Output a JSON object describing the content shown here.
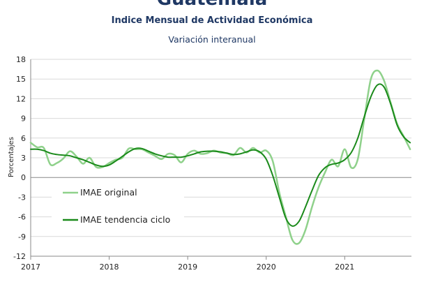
{
  "header": {
    "title": "Guatemala",
    "subtitle": "Indice Mensual de  Actividad Económica",
    "subsubtitle": "Variación interanual"
  },
  "chart_data": {
    "type": "line",
    "title": "Guatemala",
    "ylabel": "Porcentajes",
    "ylim": [
      -12,
      18
    ],
    "yticks": [
      18,
      15,
      12,
      9,
      6,
      3,
      0,
      -3,
      -6,
      -9,
      -12
    ],
    "xlim": [
      2017.0,
      2021.85
    ],
    "xticks": [
      "2017",
      "2018",
      "2019",
      "2020",
      "2021"
    ],
    "grid": "horizontal",
    "legend_position": "lower-left",
    "series": [
      {
        "name": "IMAE original",
        "color": "#8fd18b",
        "x": [
          2017.0,
          2017.083,
          2017.167,
          2017.25,
          2017.333,
          2017.417,
          2017.5,
          2017.583,
          2017.667,
          2017.75,
          2017.833,
          2017.917,
          2018.0,
          2018.083,
          2018.167,
          2018.25,
          2018.333,
          2018.417,
          2018.5,
          2018.583,
          2018.667,
          2018.75,
          2018.833,
          2018.917,
          2019.0,
          2019.083,
          2019.167,
          2019.25,
          2019.333,
          2019.417,
          2019.5,
          2019.583,
          2019.667,
          2019.75,
          2019.833,
          2019.917,
          2020.0,
          2020.083,
          2020.167,
          2020.25,
          2020.333,
          2020.417,
          2020.5,
          2020.583,
          2020.667,
          2020.75,
          2020.833,
          2020.917,
          2021.0,
          2021.083,
          2021.167,
          2021.25,
          2021.333,
          2021.417,
          2021.5,
          2021.583,
          2021.667,
          2021.75,
          2021.833
        ],
        "values": [
          5.3,
          4.6,
          4.5,
          2.0,
          2.2,
          2.9,
          4.0,
          3.2,
          2.1,
          3.0,
          1.6,
          1.6,
          2.2,
          2.7,
          3.0,
          4.4,
          4.3,
          4.3,
          3.8,
          3.3,
          2.8,
          3.6,
          3.4,
          2.3,
          3.6,
          4.1,
          3.6,
          3.7,
          4.1,
          3.8,
          3.7,
          3.4,
          4.5,
          3.8,
          4.5,
          3.8,
          4.1,
          2.5,
          -2.3,
          -6.0,
          -9.5,
          -10.0,
          -8.0,
          -4.5,
          -1.5,
          0.8,
          2.7,
          1.7,
          4.3,
          1.5,
          2.8,
          9.0,
          15.0,
          16.3,
          14.8,
          11.5,
          8.2,
          6.3,
          4.3
        ]
      },
      {
        "name": "IMAE tendencia ciclo",
        "color": "#1a8a1a",
        "x": [
          2017.0,
          2017.083,
          2017.167,
          2017.25,
          2017.333,
          2017.417,
          2017.5,
          2017.583,
          2017.667,
          2017.75,
          2017.833,
          2017.917,
          2018.0,
          2018.083,
          2018.167,
          2018.25,
          2018.333,
          2018.417,
          2018.5,
          2018.583,
          2018.667,
          2018.75,
          2018.833,
          2018.917,
          2019.0,
          2019.083,
          2019.167,
          2019.25,
          2019.333,
          2019.417,
          2019.5,
          2019.583,
          2019.667,
          2019.75,
          2019.833,
          2019.917,
          2020.0,
          2020.083,
          2020.167,
          2020.25,
          2020.333,
          2020.417,
          2020.5,
          2020.583,
          2020.667,
          2020.75,
          2020.833,
          2020.917,
          2021.0,
          2021.083,
          2021.167,
          2021.25,
          2021.333,
          2021.417,
          2021.5,
          2021.583,
          2021.667,
          2021.75,
          2021.833
        ],
        "values": [
          4.3,
          4.3,
          4.1,
          3.7,
          3.5,
          3.4,
          3.3,
          3.0,
          2.7,
          2.3,
          1.9,
          1.7,
          1.9,
          2.5,
          3.2,
          3.9,
          4.4,
          4.4,
          4.0,
          3.6,
          3.3,
          3.1,
          3.1,
          3.1,
          3.3,
          3.6,
          3.9,
          4.0,
          4.0,
          3.9,
          3.7,
          3.5,
          3.6,
          3.9,
          4.2,
          3.9,
          2.8,
          0.3,
          -3.0,
          -6.2,
          -7.4,
          -6.7,
          -4.5,
          -2.0,
          0.3,
          1.5,
          2.0,
          2.2,
          2.7,
          3.8,
          6.0,
          9.3,
          12.3,
          14.1,
          13.8,
          11.3,
          8.0,
          6.2,
          5.3
        ]
      }
    ]
  }
}
